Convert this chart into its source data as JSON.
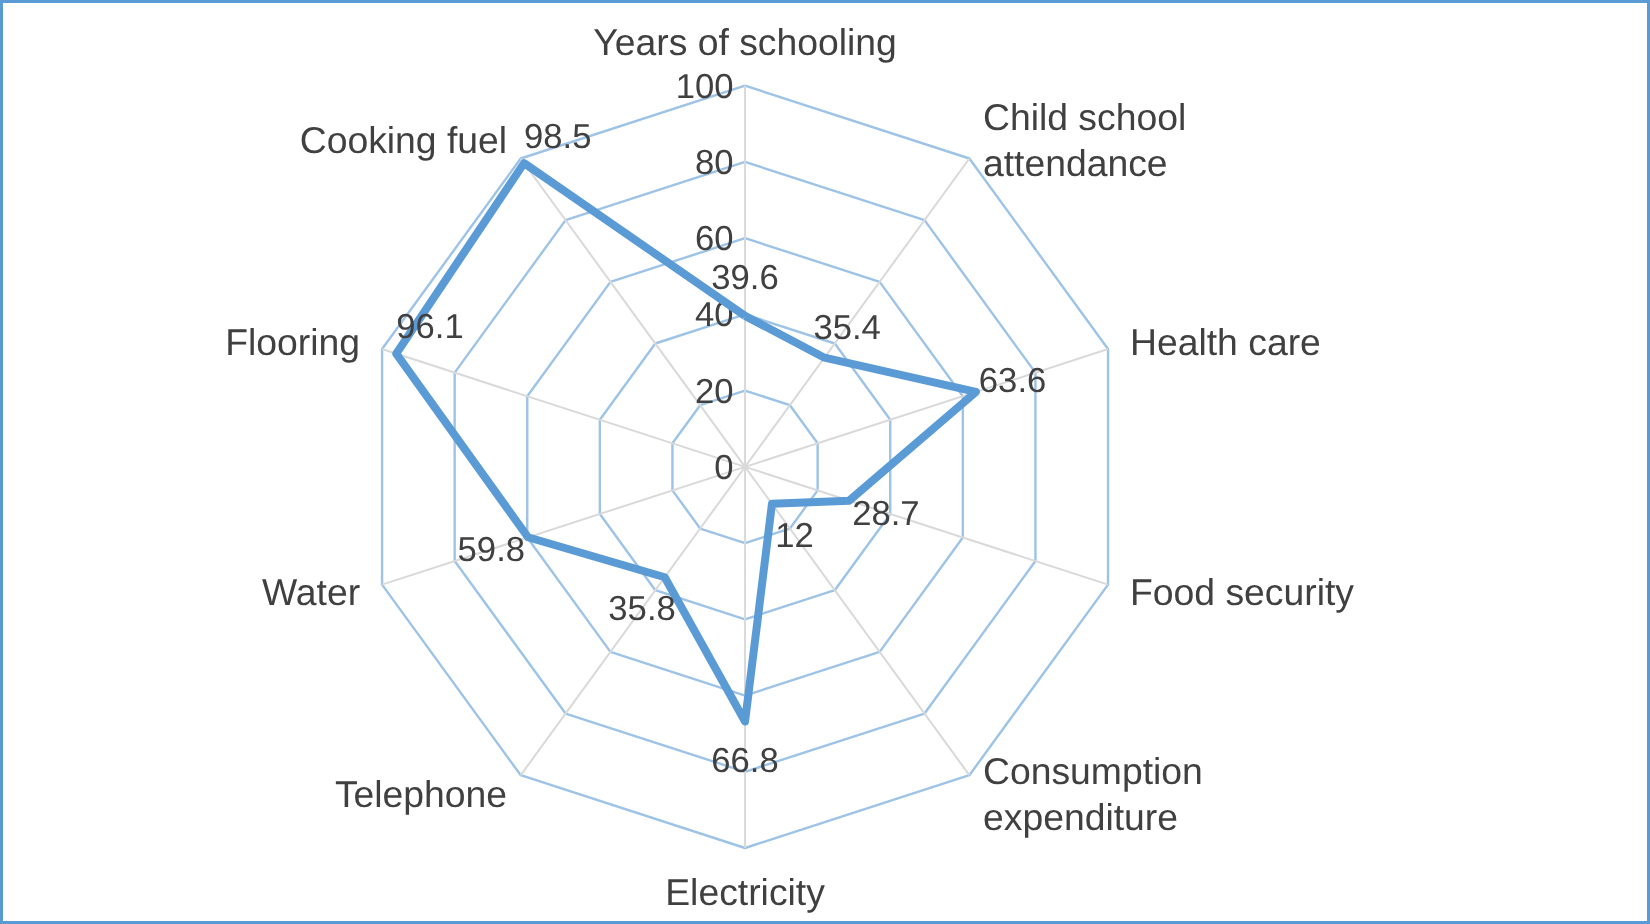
{
  "chart_data": {
    "type": "radar",
    "categories": [
      "Years of schooling",
      "Child school\nattendance",
      "Health care",
      "Food security",
      "Consumption\nexpenditure",
      "Electricity",
      "Telephone",
      "Water",
      "Flooring",
      "Cooking fuel"
    ],
    "series": [
      {
        "color": "#5b9bd5",
        "values": [
          39.6,
          35.4,
          63.6,
          28.7,
          12,
          66.8,
          35.8,
          59.8,
          96.1,
          98.5
        ]
      }
    ],
    "ylim": [
      0,
      100
    ],
    "yticks": [
      0,
      20,
      40,
      60,
      80,
      100
    ],
    "grid": true,
    "data_labels": true,
    "marker": "none",
    "line_style": "solid"
  }
}
